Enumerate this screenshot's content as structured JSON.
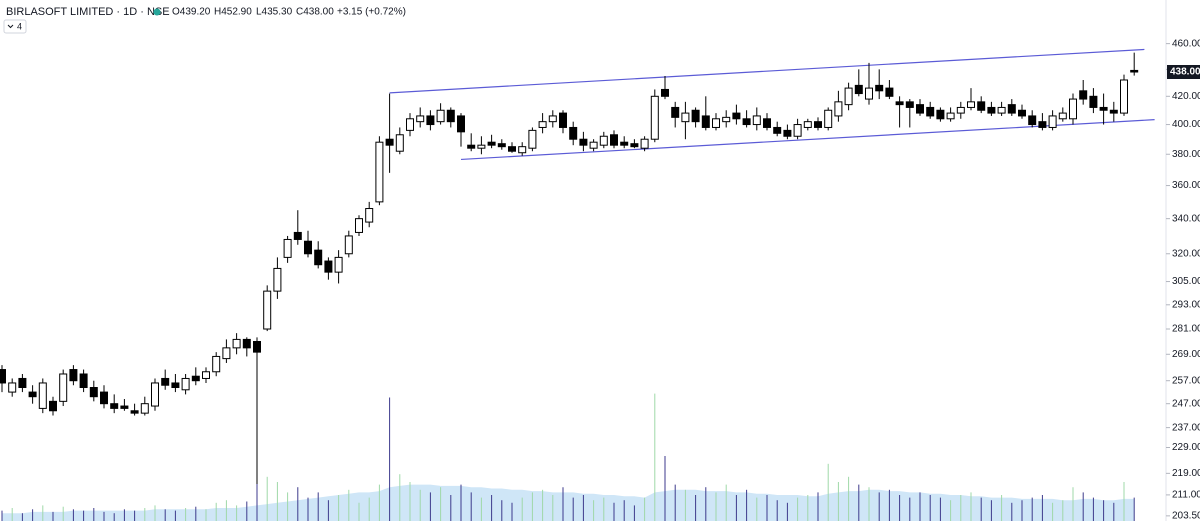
{
  "chart_data": {
    "type": "candlestick",
    "title": "BIRLASOFT LIMITED · 1D · NSE",
    "header": {
      "open": {
        "value": 439.2,
        "label": "O439.20"
      },
      "high": {
        "value": 452.9,
        "label": "H452.90"
      },
      "low": {
        "value": 435.3,
        "label": "L435.30"
      },
      "close": {
        "value": 438,
        "label": "C438.00"
      },
      "change": "+3.15 (+0.72%)"
    },
    "indicators_count": 4,
    "log_scale": true,
    "ylim": [
      201.7,
      496
    ],
    "yticks": [
      {
        "value": 460,
        "label": "460.00"
      },
      {
        "value": 440,
        "label": "440.00"
      },
      {
        "value": 420,
        "label": "420.00"
      },
      {
        "value": 400,
        "label": "400.00"
      },
      {
        "value": 380,
        "label": "380.00"
      },
      {
        "value": 360,
        "label": "360.00"
      },
      {
        "value": 340,
        "label": "340.00"
      },
      {
        "value": 320,
        "label": "320.00"
      },
      {
        "value": 305,
        "label": "305.00"
      },
      {
        "value": 293,
        "label": "293.00"
      },
      {
        "value": 281,
        "label": "281.00"
      },
      {
        "value": 269,
        "label": "269.00"
      },
      {
        "value": 257,
        "label": "257.00"
      },
      {
        "value": 247,
        "label": "247.00"
      },
      {
        "value": 237,
        "label": "237.00"
      },
      {
        "value": 229,
        "label": "229.00"
      },
      {
        "value": 219,
        "label": "219.00"
      },
      {
        "value": 211,
        "label": "211.00"
      },
      {
        "value": 203.5,
        "label": "203.50"
      }
    ],
    "price_label": {
      "value": 438,
      "label": "438.00"
    },
    "up_color": "#ffffff",
    "down_color": "#000000",
    "wick_color": "#000000",
    "open": [
      262,
      252,
      258,
      252,
      245,
      248,
      248,
      262,
      260,
      254,
      252,
      247,
      246,
      244,
      243,
      246,
      258,
      256,
      253,
      259,
      258,
      261,
      267,
      272,
      276,
      275,
      281,
      300,
      318,
      332,
      327,
      322,
      316,
      310,
      320,
      332,
      338,
      350,
      390,
      382,
      396,
      402,
      406,
      402,
      410,
      406,
      386,
      384,
      388,
      387,
      385,
      381,
      384,
      398,
      402,
      408,
      398,
      390,
      384,
      386,
      393,
      388,
      387,
      384,
      390,
      425,
      412,
      402,
      410,
      406,
      398,
      402,
      408,
      404,
      400,
      404,
      398,
      396,
      392,
      398,
      402,
      398,
      406,
      414,
      428,
      418,
      428,
      426,
      416,
      416,
      414,
      412,
      410,
      404,
      408,
      412,
      416,
      412,
      408,
      414,
      410,
      406,
      402,
      398,
      404,
      404,
      424,
      420,
      412,
      410,
      408,
      439.2
    ],
    "high": [
      264,
      258,
      260,
      255,
      258,
      250,
      262,
      264,
      262,
      257,
      255,
      251,
      249,
      247,
      250,
      258,
      262,
      260,
      260,
      263,
      263,
      270,
      276,
      279,
      277,
      277,
      303,
      318,
      330,
      345,
      333,
      327,
      318,
      322,
      333,
      342,
      350,
      392,
      422,
      398,
      408,
      412,
      410,
      415,
      412,
      408,
      394,
      392,
      393,
      390,
      388,
      388,
      398,
      408,
      410,
      410,
      402,
      395,
      390,
      395,
      396,
      392,
      390,
      392,
      425,
      435,
      416,
      416,
      412,
      420,
      408,
      410,
      414,
      410,
      412,
      408,
      402,
      400,
      404,
      404,
      405,
      412,
      424,
      430,
      440,
      445,
      440,
      432,
      420,
      418,
      418,
      416,
      412,
      412,
      416,
      426,
      420,
      416,
      416,
      418,
      414,
      410,
      408,
      410,
      412,
      422,
      432,
      426,
      422,
      416,
      436,
      452.9
    ],
    "low": [
      252,
      250,
      252,
      247,
      243,
      242,
      246,
      255,
      252,
      248,
      245,
      243,
      244,
      242,
      242,
      244,
      253,
      252,
      251,
      255,
      256,
      259,
      265,
      269,
      268,
      215,
      280,
      296,
      315,
      325,
      318,
      312,
      306,
      304,
      318,
      330,
      335,
      348,
      368,
      380,
      392,
      398,
      396,
      400,
      398,
      385,
      382,
      380,
      384,
      383,
      381,
      379,
      382,
      394,
      398,
      394,
      386,
      382,
      382,
      384,
      384,
      384,
      384,
      382,
      388,
      418,
      398,
      390,
      398,
      396,
      396,
      398,
      400,
      398,
      396,
      396,
      392,
      390,
      390,
      396,
      396,
      396,
      402,
      410,
      420,
      414,
      418,
      418,
      398,
      398,
      406,
      404,
      402,
      402,
      404,
      410,
      408,
      406,
      406,
      406,
      404,
      398,
      396,
      396,
      402,
      400,
      414,
      408,
      400,
      402,
      406,
      435.3
    ],
    "close": [
      256,
      256,
      254,
      250,
      256,
      244,
      260,
      257,
      254,
      250,
      247,
      245,
      245,
      243,
      247,
      256,
      255,
      254,
      258,
      257,
      261,
      268,
      272,
      276,
      272,
      270,
      300,
      312,
      328,
      328,
      320,
      314,
      310,
      318,
      330,
      340,
      346,
      388,
      386,
      393,
      404,
      406,
      400,
      410,
      402,
      395,
      384,
      386,
      386,
      385,
      382,
      385,
      396,
      402,
      406,
      398,
      390,
      386,
      388,
      392,
      386,
      386,
      385,
      390,
      420,
      420,
      405,
      408,
      402,
      398,
      404,
      405,
      404,
      400,
      406,
      398,
      394,
      392,
      400,
      402,
      398,
      410,
      416,
      426,
      422,
      426,
      424,
      420,
      414,
      412,
      408,
      406,
      404,
      408,
      412,
      416,
      410,
      408,
      412,
      408,
      406,
      400,
      398,
      406,
      408,
      418,
      418,
      412,
      410,
      408,
      432,
      438
    ],
    "volume": [
      8,
      10,
      6,
      9,
      12,
      7,
      11,
      9,
      8,
      10,
      7,
      6,
      9,
      8,
      10,
      12,
      9,
      8,
      10,
      11,
      9,
      14,
      16,
      12,
      15,
      40,
      34,
      30,
      22,
      26,
      18,
      22,
      16,
      20,
      24,
      14,
      18,
      28,
      95,
      36,
      30,
      24,
      22,
      26,
      20,
      28,
      22,
      18,
      20,
      16,
      14,
      18,
      22,
      24,
      20,
      26,
      18,
      20,
      16,
      18,
      14,
      16,
      12,
      18,
      98,
      50,
      28,
      24,
      20,
      26,
      22,
      28,
      20,
      24,
      18,
      20,
      16,
      14,
      18,
      20,
      22,
      44,
      30,
      34,
      28,
      26,
      22,
      24,
      20,
      18,
      22,
      20,
      18,
      16,
      20,
      22,
      18,
      16,
      20,
      14,
      16,
      18,
      20,
      14,
      16,
      26,
      22,
      18,
      16,
      14,
      30,
      18
    ],
    "volume_ma": [
      6,
      6,
      6,
      7,
      7,
      7,
      7,
      8,
      8,
      8,
      8,
      8,
      8,
      8,
      8,
      9,
      9,
      9,
      9,
      9,
      9,
      10,
      10,
      10,
      11,
      12,
      13,
      14,
      15,
      16,
      17,
      18,
      19,
      20,
      21,
      22,
      22,
      23,
      26,
      27,
      28,
      28,
      28,
      27,
      27,
      27,
      26,
      26,
      25,
      25,
      24,
      24,
      23,
      23,
      22,
      22,
      22,
      21,
      21,
      20,
      20,
      19,
      19,
      18,
      22,
      23,
      24,
      24,
      24,
      23,
      23,
      23,
      22,
      22,
      21,
      21,
      20,
      20,
      20,
      19,
      19,
      21,
      22,
      23,
      23,
      24,
      24,
      23,
      23,
      22,
      22,
      21,
      21,
      20,
      20,
      19,
      19,
      18,
      18,
      18,
      17,
      17,
      17,
      17,
      16,
      16,
      17,
      17,
      16,
      16,
      17,
      17
    ],
    "volume_lim": [
      0,
      100
    ],
    "volume_up_color": "#9fd8a8",
    "volume_down_color": "#3d3a8c",
    "volume_ma_color": "#cfe6f7",
    "trendline_color": "#5b5bd6",
    "trendlines": [
      {
        "x": [
          38,
          112
        ],
        "y": [
          422.5,
          455.4
        ]
      },
      {
        "x": [
          45,
          113
        ],
        "y": [
          376.6,
          403.4
        ]
      }
    ]
  }
}
